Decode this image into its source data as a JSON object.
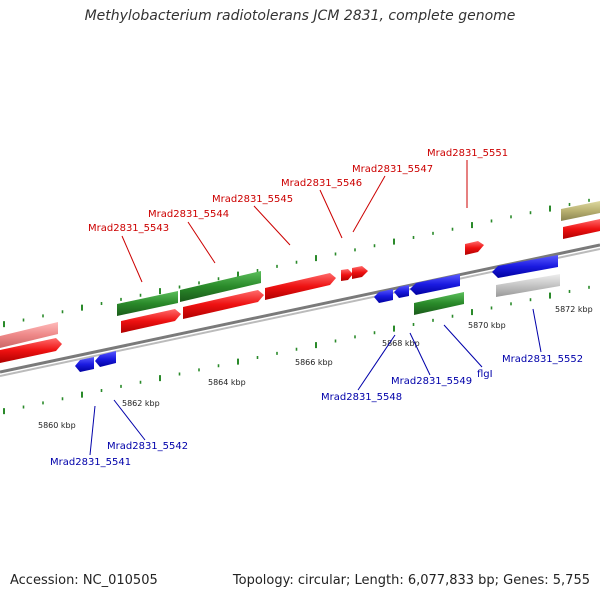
{
  "title": "Methylobacterium radiotolerans JCM 2831, complete genome",
  "footer": {
    "accession": "Accession: NC_010505",
    "summary": "Topology: circular; Length: 6,077,833 bp; Genes: 5,755"
  },
  "colors": {
    "red": "#ee1111",
    "green": "#2a8a2a",
    "blue": "#1a1ae0",
    "gray": "#bbbbbb",
    "khaki": "#b8b070",
    "pink": "#ee8888",
    "backbone": "#888888",
    "tick": "#2a8a2a",
    "label_red": "#cc0000",
    "label_blue": "#0000aa"
  },
  "scale": {
    "labels": [
      "5860 kbp",
      "5862 kbp",
      "5864 kbp",
      "5866 kbp",
      "5868 kbp",
      "5870 kbp",
      "5872 kbp"
    ]
  },
  "labels": {
    "top": [
      "Mrad2831_5543",
      "Mrad2831_5544",
      "Mrad2831_5545",
      "Mrad2831_5546",
      "Mrad2831_5547",
      "Mrad2831_5551"
    ],
    "bottom": [
      "Mrad2831_5541",
      "Mrad2831_5542",
      "Mrad2831_5548",
      "Mrad2831_5549",
      "flgI",
      "Mrad2831_5552"
    ]
  }
}
